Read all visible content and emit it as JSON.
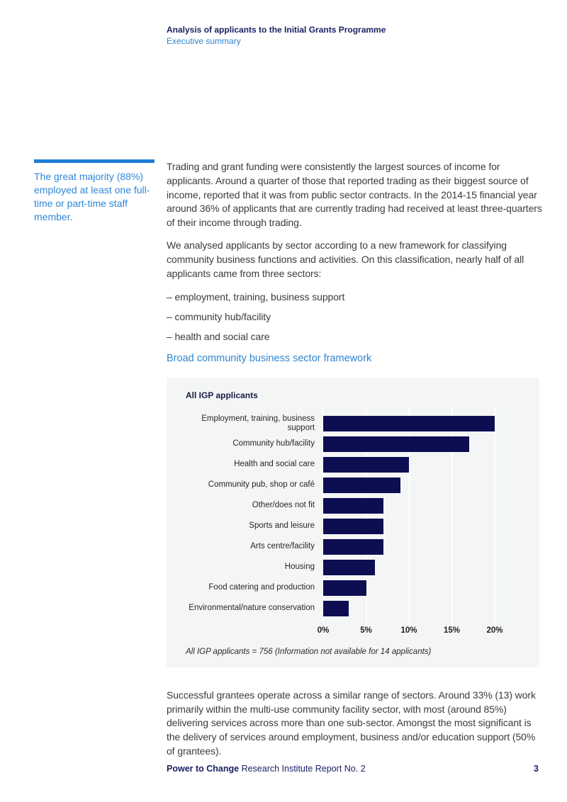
{
  "header": {
    "title": "Analysis of applicants to the Initial Grants Programme",
    "subtitle": "Executive summary"
  },
  "callout": {
    "text": "The great majority (88%) employed at least one full-time or part-time staff member."
  },
  "paragraphs": {
    "p1": "Trading and grant funding were consistently the largest sources of income for applicants. Around a quarter of those that reported trading as their biggest source of income, reported that it was from public sector contracts. In the 2014-15 financial year around 36% of applicants that are currently trading had received at least three-quarters of their income through trading.",
    "p2": "We analysed applicants by sector according to a new framework for classifying community business functions and activities. On this classification, nearly half of all applicants came from three sectors:",
    "bullets": [
      "– employment, training, business support",
      "– community hub/facility",
      "– health and social care"
    ],
    "p3": "Successful grantees operate across a similar range of sectors. Around 33% (13) work primarily within the multi-use community facility sector, with most (around 85%) delivering services across more than one sub-sector. Amongst the most significant is the delivery of services around employment, business and/or education support (50% of grantees)."
  },
  "chart_heading": "Broad community business sector framework",
  "chart_data": {
    "type": "bar",
    "orientation": "horizontal",
    "title": "All IGP applicants",
    "categories": [
      "Employment, training, business support",
      "Community hub/facility",
      "Health and social care",
      "Community pub, shop or café",
      "Other/does not fit",
      "Sports and leisure",
      "Arts centre/facility",
      "Housing",
      "Food catering and production",
      "Environmental/nature conservation"
    ],
    "values": [
      20,
      17,
      10,
      9,
      7,
      7,
      7,
      6,
      5,
      3
    ],
    "unit": "%",
    "x_tick_values": [
      0,
      5,
      10,
      15,
      20
    ],
    "x_tick_labels": [
      "0%",
      "5%",
      "10%",
      "15%",
      "20%"
    ],
    "xlim": [
      0,
      25
    ],
    "grid": true,
    "bar_color": "#0d0d52",
    "panel_color": "#f3f6f5",
    "note": "All IGP applicants = 756 (Information not available for 14 applicants)"
  },
  "footer": {
    "brand": "Power to Change",
    "rest": " Research Institute Report No. 2",
    "page": "3"
  },
  "colors": {
    "navy_text": "#1b2163",
    "blue_accent": "#2f87d9",
    "rule_blue": "#1e7cd4",
    "body_text": "#3b3b3a"
  }
}
